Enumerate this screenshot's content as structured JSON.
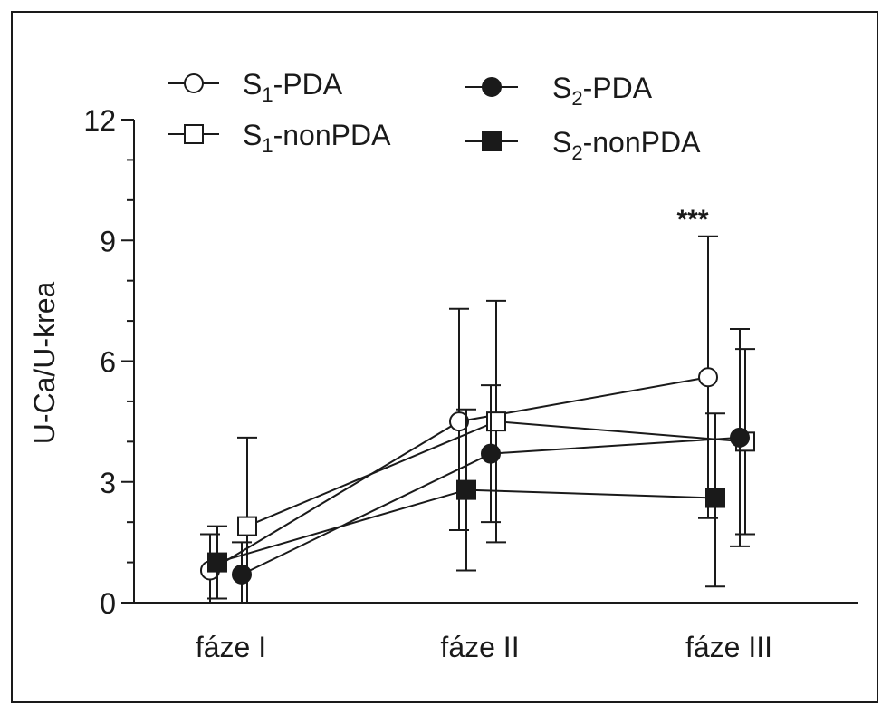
{
  "chart_data": {
    "type": "line",
    "title": "",
    "xlabel": "",
    "ylabel": "U-Ca/U-krea",
    "categories": [
      "fáze I",
      "fáze II",
      "fáze III"
    ],
    "ylim": [
      0,
      12
    ],
    "yticks": [
      0,
      3,
      6,
      9,
      12
    ],
    "grid": false,
    "legend_position": "top",
    "series": [
      {
        "key": "s1pda",
        "name_main": "S",
        "name_sub": "1",
        "name_rest": "-PDA",
        "marker": "circle",
        "fill": "open",
        "values": [
          0.8,
          4.5,
          5.6
        ],
        "err_low": [
          0.0,
          1.8,
          2.1
        ],
        "err_high": [
          1.7,
          7.3,
          9.1
        ]
      },
      {
        "key": "s1nonpda",
        "name_main": "S",
        "name_sub": "1",
        "name_rest": "-nonPDA",
        "marker": "square",
        "fill": "open",
        "values": [
          1.9,
          4.5,
          4.0
        ],
        "err_low": [
          0.0,
          1.5,
          1.7
        ],
        "err_high": [
          4.1,
          7.5,
          6.3
        ]
      },
      {
        "key": "s2pda",
        "name_main": "S",
        "name_sub": "2",
        "name_rest": "-PDA",
        "marker": "circle",
        "fill": "filled",
        "values": [
          0.7,
          3.7,
          4.1
        ],
        "err_low": [
          0.0,
          2.0,
          1.4
        ],
        "err_high": [
          1.5,
          5.4,
          6.8
        ]
      },
      {
        "key": "s2nonpda",
        "name_main": "S",
        "name_sub": "2",
        "name_rest": "-nonPDA",
        "marker": "square",
        "fill": "filled",
        "values": [
          1.0,
          2.8,
          2.6
        ],
        "err_low": [
          0.1,
          0.8,
          0.4
        ],
        "err_high": [
          1.9,
          4.8,
          4.7
        ]
      }
    ],
    "annotations": [
      {
        "text": "***",
        "category_index": 2,
        "y": 9.5
      }
    ]
  }
}
